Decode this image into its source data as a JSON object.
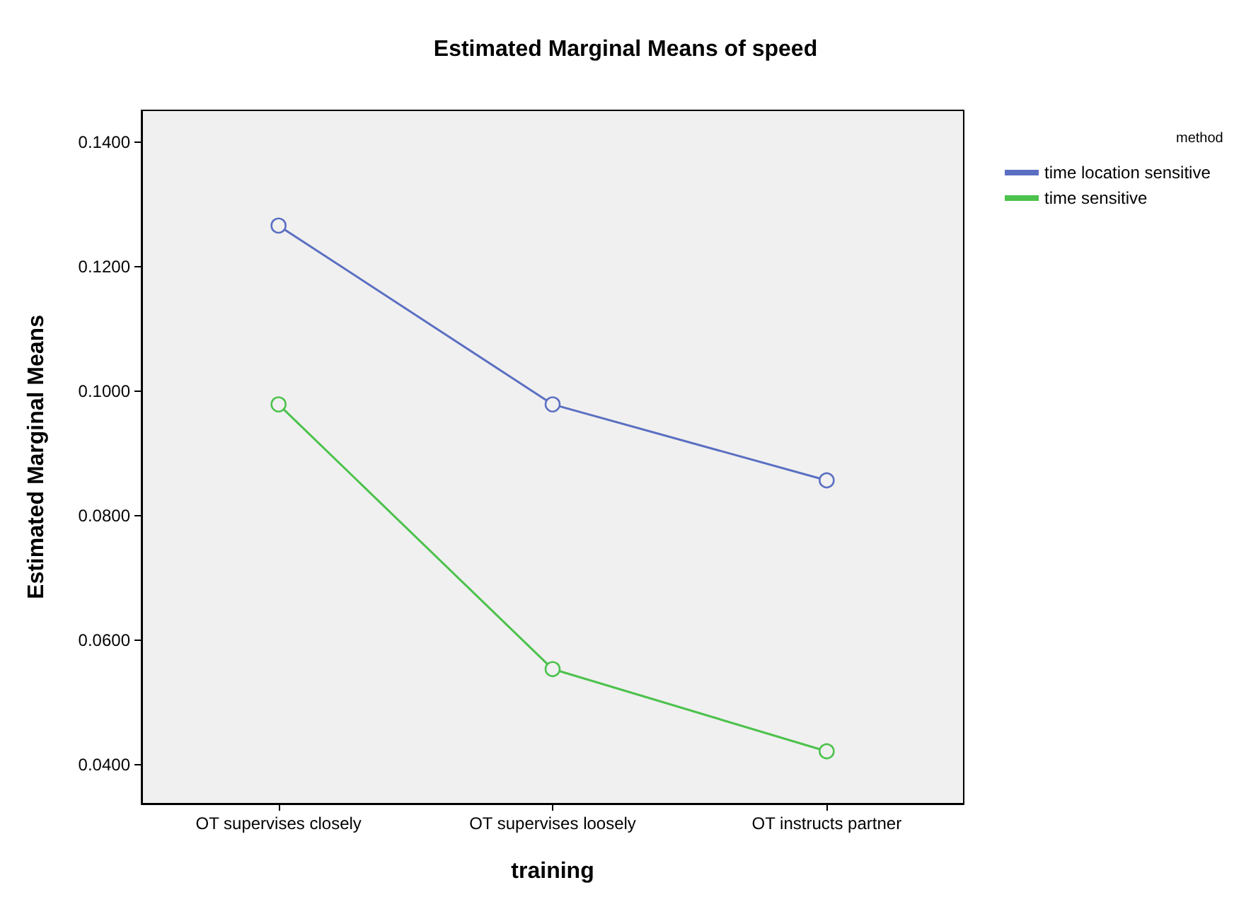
{
  "chart_data": {
    "type": "line",
    "title": "Estimated Marginal Means of speed",
    "xlabel": "training",
    "ylabel": "Estimated Marginal Means",
    "legend_title": "method",
    "categories": [
      "OT supervises closely",
      "OT supervises loosely",
      "OT instructs partner"
    ],
    "series": [
      {
        "name": "time location sensitive",
        "color": "#5b6fc2",
        "values": [
          0.1266,
          0.0979,
          0.0857
        ]
      },
      {
        "name": "time sensitive",
        "color": "#4cc24c",
        "values": [
          0.0979,
          0.0554,
          0.0422
        ]
      }
    ],
    "ylim": [
      0.0338,
      0.1451
    ],
    "yticks": [
      {
        "value": 0.04,
        "label": "0.0400"
      },
      {
        "value": 0.06,
        "label": "0.0600"
      },
      {
        "value": 0.08,
        "label": "0.0800"
      },
      {
        "value": 0.1,
        "label": "0.1000"
      },
      {
        "value": 0.12,
        "label": "0.1200"
      },
      {
        "value": 0.14,
        "label": "0.1400"
      }
    ],
    "grid": false,
    "legend": "top right",
    "marker": "circle",
    "line_style": "solid"
  }
}
